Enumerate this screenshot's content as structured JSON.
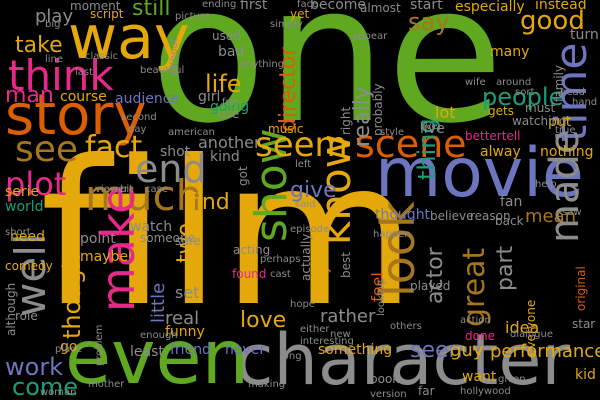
{
  "word_cloud": {
    "background": "#000000",
    "words": [
      {
        "text": "one",
        "color": "#5fa81f"
      },
      {
        "text": "film",
        "color": "#e5a80b"
      },
      {
        "text": "character",
        "color": "#8c8c8c"
      },
      {
        "text": "even",
        "color": "#5fa81f"
      },
      {
        "text": "movie",
        "color": "#6d75bf"
      },
      {
        "text": "story",
        "color": "#d95f02"
      },
      {
        "text": "way",
        "color": "#e5a80b"
      },
      {
        "text": "show",
        "color": "#5fa81f"
      },
      {
        "text": "scene",
        "color": "#d95f02"
      },
      {
        "text": "think",
        "color": "#e7298a"
      },
      {
        "text": "time",
        "color": "#6d75bf"
      },
      {
        "text": "much",
        "color": "#a6761d"
      },
      {
        "text": "make",
        "color": "#e7298a"
      },
      {
        "text": "look",
        "color": "#a6761d"
      },
      {
        "text": "know",
        "color": "#e5a80b"
      },
      {
        "text": "see",
        "color": "#a6761d"
      },
      {
        "text": "seem",
        "color": "#e5a80b"
      },
      {
        "text": "made",
        "color": "#8c8c8c"
      },
      {
        "text": "well",
        "color": "#8c8c8c"
      },
      {
        "text": "end",
        "color": "#8c8c8c"
      },
      {
        "text": "fact",
        "color": "#e5a80b"
      },
      {
        "text": "plot",
        "color": "#e7298a"
      },
      {
        "text": "people",
        "color": "#1b9e77"
      },
      {
        "text": "good",
        "color": "#e5a80b"
      },
      {
        "text": "say",
        "color": "#a6761d"
      },
      {
        "text": "life",
        "color": "#e5a80b"
      },
      {
        "text": "work",
        "color": "#6d75bf"
      },
      {
        "text": "come",
        "color": "#1b9e77"
      },
      {
        "text": "take",
        "color": "#e5a80b"
      },
      {
        "text": "man",
        "color": "#e7298a"
      },
      {
        "text": "love",
        "color": "#e5a80b"
      },
      {
        "text": "seen",
        "color": "#6d75bf"
      },
      {
        "text": "find",
        "color": "#e5a80b"
      },
      {
        "text": "give",
        "color": "#6d75bf"
      },
      {
        "text": "part",
        "color": "#8c8c8c"
      },
      {
        "text": "actor",
        "color": "#8c8c8c"
      },
      {
        "text": "great",
        "color": "#a6761d"
      },
      {
        "text": "though",
        "color": "#e5a80b"
      },
      {
        "text": "two",
        "color": "#e5a80b"
      },
      {
        "text": "still",
        "color": "#5fa81f"
      },
      {
        "text": "thing",
        "color": "#1b9e77"
      },
      {
        "text": "really",
        "color": "#8c8c8c"
      },
      {
        "text": "director",
        "color": "#d95f02"
      },
      {
        "text": "play",
        "color": "#8c8c8c"
      },
      {
        "text": "little",
        "color": "#6d75bf"
      },
      {
        "text": "kind",
        "color": "#8c8c8c"
      },
      {
        "text": "another",
        "color": "#8c8c8c"
      },
      {
        "text": "friend",
        "color": "#6d75bf"
      },
      {
        "text": "never",
        "color": "#6d75bf"
      },
      {
        "text": "performance",
        "color": "#e5a80b"
      },
      {
        "text": "something",
        "color": "#e5a80b"
      },
      {
        "text": "want",
        "color": "#e5a80b"
      },
      {
        "text": "idea",
        "color": "#e5a80b"
      },
      {
        "text": "mean",
        "color": "#a6761d"
      },
      {
        "text": "nothing",
        "color": "#e5a80b"
      },
      {
        "text": "real",
        "color": "#8c8c8c"
      },
      {
        "text": "set",
        "color": "#8c8c8c"
      },
      {
        "text": "least",
        "color": "#8c8c8c"
      },
      {
        "text": "guy",
        "color": "#e5a80b"
      },
      {
        "text": "lot",
        "color": "#e5a80b"
      },
      {
        "text": "live",
        "color": "#8c8c8c"
      },
      {
        "text": "alway",
        "color": "#e5a80b"
      },
      {
        "text": "rather",
        "color": "#8c8c8c"
      },
      {
        "text": "watch",
        "color": "#8c8c8c"
      },
      {
        "text": "point",
        "color": "#8c8c8c"
      },
      {
        "text": "maybe",
        "color": "#e5a80b"
      },
      {
        "text": "serie",
        "color": "#e5a80b"
      },
      {
        "text": "world",
        "color": "#1b9e77"
      },
      {
        "text": "need",
        "color": "#e5a80b"
      },
      {
        "text": "go",
        "color": "#e5a80b"
      },
      {
        "text": "role",
        "color": "#8c8c8c"
      },
      {
        "text": "course",
        "color": "#e5a80b"
      },
      {
        "text": "audience",
        "color": "#6d75bf"
      },
      {
        "text": "girl",
        "color": "#8c8c8c"
      },
      {
        "text": "bad",
        "color": "#8c8c8c"
      },
      {
        "text": "used",
        "color": "#8c8c8c"
      },
      {
        "text": "going",
        "color": "#1b9e77"
      },
      {
        "text": "shot",
        "color": "#8c8c8c"
      },
      {
        "text": "music",
        "color": "#e5a80b"
      },
      {
        "text": "yet",
        "color": "#e5a80b"
      },
      {
        "text": "first",
        "color": "#8c8c8c"
      },
      {
        "text": "become",
        "color": "#8c8c8c"
      },
      {
        "text": "start",
        "color": "#8c8c8c"
      },
      {
        "text": "especially",
        "color": "#e5a80b"
      },
      {
        "text": "instead",
        "color": "#e5a80b"
      },
      {
        "text": "turn",
        "color": "#8c8c8c"
      },
      {
        "text": "many",
        "color": "#e5a80b"
      },
      {
        "text": "funny",
        "color": "#e5a80b"
      },
      {
        "text": "found",
        "color": "#e7298a"
      },
      {
        "text": "acting",
        "color": "#8c8c8c"
      },
      {
        "text": "comedy",
        "color": "#e5a80b"
      },
      {
        "text": "although",
        "color": "#8c8c8c"
      },
      {
        "text": "feel",
        "color": "#d95f02"
      },
      {
        "text": "thought",
        "color": "#6d75bf"
      },
      {
        "text": "fan",
        "color": "#8c8c8c"
      },
      {
        "text": "back",
        "color": "#8c8c8c"
      },
      {
        "text": "book",
        "color": "#8c8c8c"
      },
      {
        "text": "far",
        "color": "#8c8c8c"
      },
      {
        "text": "done",
        "color": "#e7298a"
      },
      {
        "text": "played",
        "color": "#8c8c8c"
      },
      {
        "text": "put",
        "color": "#e5a80b"
      },
      {
        "text": "family",
        "color": "#8c8c8c"
      },
      {
        "text": "star",
        "color": "#8c8c8c"
      },
      {
        "text": "kid",
        "color": "#e5a80b"
      },
      {
        "text": "moment",
        "color": "#8c8c8c"
      },
      {
        "text": "script",
        "color": "#e5a80b"
      },
      {
        "text": "sure",
        "color": "#8c8c8c"
      },
      {
        "text": "someone",
        "color": "#8c8c8c"
      },
      {
        "text": "right",
        "color": "#8c8c8c"
      },
      {
        "text": "probably",
        "color": "#8c8c8c"
      },
      {
        "text": "everything",
        "color": "#e5a80b"
      },
      {
        "text": "actually",
        "color": "#8c8c8c"
      },
      {
        "text": "almost",
        "color": "#8c8c8c"
      },
      {
        "text": "watching",
        "color": "#8c8c8c"
      },
      {
        "text": "must",
        "color": "#8c8c8c"
      },
      {
        "text": "gets",
        "color": "#e5a80b"
      },
      {
        "text": "bettertell",
        "color": "#e7298a"
      },
      {
        "text": "believe",
        "color": "#8c8c8c"
      },
      {
        "text": "reason",
        "color": "#8c8c8c"
      },
      {
        "text": "everyone",
        "color": "#e5a80b"
      },
      {
        "text": "original",
        "color": "#d95f02"
      },
      {
        "text": "woman",
        "color": "#8c8c8c"
      },
      {
        "text": "big",
        "color": "#8c8c8c"
      },
      {
        "text": "making",
        "color": "#8c8c8c"
      },
      {
        "text": "long",
        "color": "#8c8c8c"
      },
      {
        "text": "problem",
        "color": "#8c8c8c"
      },
      {
        "text": "new",
        "color": "#8c8c8c"
      },
      {
        "text": "hollywood",
        "color": "#8c8c8c"
      },
      {
        "text": "episode",
        "color": "#8c8c8c"
      },
      {
        "text": "said",
        "color": "#8c8c8c"
      },
      {
        "text": "either",
        "color": "#8c8c8c"
      },
      {
        "text": "interesting",
        "color": "#8c8c8c"
      },
      {
        "text": "others",
        "color": "#8c8c8c"
      },
      {
        "text": "action",
        "color": "#8c8c8c"
      },
      {
        "text": "dialogue",
        "color": "#8c8c8c"
      },
      {
        "text": "enough",
        "color": "#8c8c8c"
      },
      {
        "text": "place",
        "color": "#8c8c8c"
      },
      {
        "text": "mother",
        "color": "#8c8c8c"
      },
      {
        "text": "given",
        "color": "#8c8c8c"
      },
      {
        "text": "cast",
        "color": "#8c8c8c"
      },
      {
        "text": "perhaps",
        "color": "#8c8c8c"
      },
      {
        "text": "help",
        "color": "#8c8c8c"
      },
      {
        "text": "ending",
        "color": "#8c8c8c"
      },
      {
        "text": "picture",
        "color": "#8c8c8c"
      },
      {
        "text": "beautiful",
        "color": "#8c8c8c"
      },
      {
        "text": "classic",
        "color": "#8c8c8c"
      },
      {
        "text": "without",
        "color": "#8c8c8c"
      },
      {
        "text": "anything",
        "color": "#8c8c8c"
      },
      {
        "text": "simply",
        "color": "#8c8c8c"
      },
      {
        "text": "face",
        "color": "#8c8c8c"
      },
      {
        "text": "appear",
        "color": "#8c8c8c"
      },
      {
        "text": "wife",
        "color": "#8c8c8c"
      },
      {
        "text": "around",
        "color": "#8c8c8c"
      },
      {
        "text": "hand",
        "color": "#8c8c8c"
      },
      {
        "text": "style",
        "color": "#8c8c8c"
      },
      {
        "text": "true",
        "color": "#8c8c8c"
      },
      {
        "text": "second",
        "color": "#8c8c8c"
      },
      {
        "text": "day",
        "color": "#8c8c8c"
      },
      {
        "text": "american",
        "color": "#8c8c8c"
      },
      {
        "text": "fun",
        "color": "#8c8c8c"
      },
      {
        "text": "use",
        "color": "#8c8c8c"
      },
      {
        "text": "short",
        "color": "#8c8c8c"
      },
      {
        "text": "viewer",
        "color": "#8c8c8c"
      },
      {
        "text": "bit",
        "color": "#8c8c8c"
      },
      {
        "text": "case",
        "color": "#8c8c8c"
      },
      {
        "text": "saw",
        "color": "#8c8c8c"
      },
      {
        "text": "last",
        "color": "#8c8c8c"
      },
      {
        "text": "line",
        "color": "#8c8c8c"
      },
      {
        "text": "sort",
        "color": "#8c8c8c"
      },
      {
        "text": "happen",
        "color": "#8c8c8c"
      },
      {
        "text": "left",
        "color": "#8c8c8c"
      },
      {
        "text": "hope",
        "color": "#8c8c8c"
      },
      {
        "text": "looking",
        "color": "#8c8c8c"
      },
      {
        "text": "version",
        "color": "#8c8c8c"
      },
      {
        "text": "got",
        "color": "#8c8c8c"
      },
      {
        "text": "best",
        "color": "#8c8c8c"
      },
      {
        "text": "head",
        "color": "#8c8c8c"
      },
      {
        "text": "live",
        "color": "#8c8c8c"
      }
    ]
  }
}
